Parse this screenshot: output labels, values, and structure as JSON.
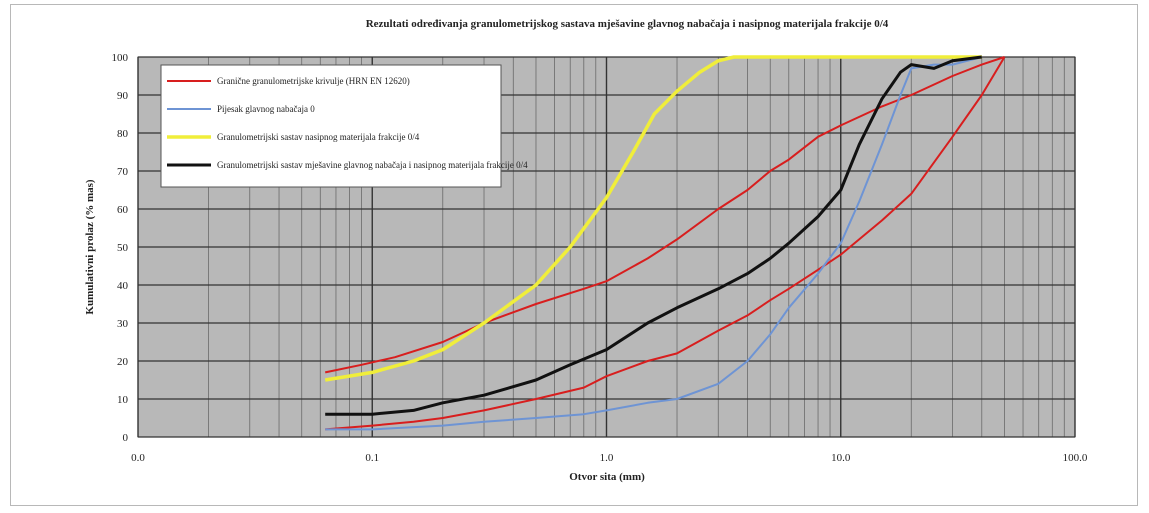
{
  "chart_data": {
    "type": "line",
    "title": "Rezultati određivanja granulometrijskog sastava mješavine glavnog nabačaja i nasipnog materijala frakcije 0/4",
    "xlabel": "Otvor sita (mm)",
    "ylabel": "Kumulativni prolaz (% mas)",
    "x_scale": "log",
    "xlim": [
      0.01,
      100
    ],
    "ylim": [
      0,
      100
    ],
    "x_ticks": [
      "0.0",
      "0.1",
      "1.0",
      "10.0",
      "100.0"
    ],
    "x_tick_values": [
      0.01,
      0.1,
      1,
      10,
      100
    ],
    "y_ticks": [
      0,
      10,
      20,
      30,
      40,
      50,
      60,
      70,
      80,
      90,
      100
    ],
    "grid": true,
    "plot_background": "#b8b8b8",
    "legend_position": "top-left",
    "series": [
      {
        "name": "Granične granulometrijske krivulje (HRN EN 12620)",
        "color": "#d81e1e",
        "x": [
          0.063,
          0.09,
          0.125,
          0.2,
          0.3,
          0.5,
          0.8,
          1.0,
          1.5,
          2,
          3,
          4,
          5,
          6,
          8,
          10,
          15,
          20,
          30,
          40,
          50
        ],
        "y": [
          17,
          19,
          21,
          25,
          30,
          35,
          39,
          41,
          47,
          52,
          60,
          65,
          70,
          73,
          79,
          82,
          87,
          90,
          95,
          98,
          100
        ]
      },
      {
        "name": "",
        "color": "#d81e1e",
        "x": [
          0.063,
          0.1,
          0.15,
          0.2,
          0.3,
          0.5,
          0.8,
          1.0,
          1.5,
          2,
          3,
          4,
          5,
          6,
          8,
          10,
          15,
          20,
          30,
          40,
          50
        ],
        "y": [
          2,
          3,
          4,
          5,
          7,
          10,
          13,
          16,
          20,
          22,
          28,
          32,
          36,
          39,
          44,
          48,
          57,
          64,
          79,
          90,
          100
        ]
      },
      {
        "name": "Pijesak glavnog nabačaja 0",
        "color": "#6e94d4",
        "x": [
          0.063,
          0.1,
          0.2,
          0.3,
          0.5,
          0.8,
          1.0,
          1.5,
          2,
          3,
          4,
          5,
          6,
          8,
          10,
          12,
          15,
          18,
          20,
          25,
          30,
          40
        ],
        "y": [
          2,
          2,
          3,
          4,
          5,
          6,
          7,
          9,
          10,
          14,
          20,
          27,
          34,
          43,
          51,
          62,
          77,
          90,
          97,
          98,
          98,
          100
        ]
      },
      {
        "name": "Granulometrijski sastav nasipnog materijala frakcije 0/4",
        "color": "#f0ee3a",
        "x": [
          0.063,
          0.1,
          0.15,
          0.2,
          0.3,
          0.5,
          0.7,
          1.0,
          1.3,
          1.6,
          2,
          2.5,
          3,
          3.5,
          4,
          5,
          10,
          20,
          30,
          40
        ],
        "y": [
          15,
          17,
          20,
          23,
          30,
          40,
          50,
          63,
          75,
          85,
          91,
          96,
          99,
          100,
          100,
          100,
          100,
          100,
          100,
          100
        ]
      },
      {
        "name": "Granulometrijski sastav mješavine glavnog nabačaja i nasipnog materijala frakcije 0/4",
        "color": "#111111",
        "x": [
          0.063,
          0.1,
          0.15,
          0.2,
          0.3,
          0.5,
          0.7,
          1.0,
          1.5,
          2,
          3,
          4,
          5,
          6,
          8,
          10,
          12,
          15,
          18,
          20,
          25,
          30,
          40
        ],
        "y": [
          6,
          6,
          7,
          9,
          11,
          15,
          19,
          23,
          30,
          34,
          39,
          43,
          47,
          51,
          58,
          65,
          77,
          89,
          96,
          98,
          97,
          99,
          100
        ]
      }
    ]
  }
}
